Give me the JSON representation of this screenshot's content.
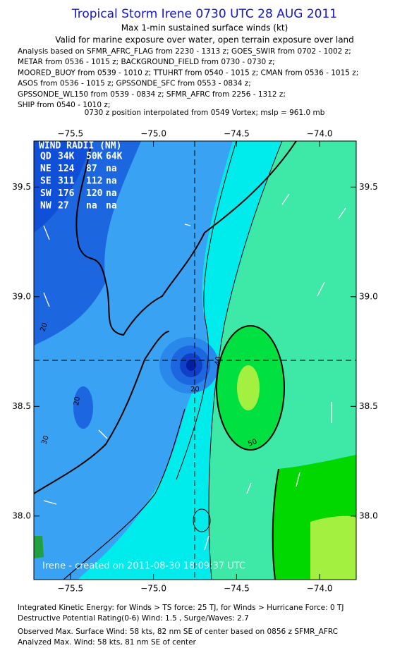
{
  "header": {
    "title": "Tropical Storm Irene 0730 UTC 28 AUG 2011",
    "subtitle": "Max 1-min sustained surface winds (kt)",
    "validity": "Valid for marine exposure over water, open terrain exposure over land",
    "analysis_lines": [
      "Analysis based on SFMR_AFRC_FLAG from 2230 - 1313 z; GOES_SWIR from 0702 - 1002 z;",
      "METAR from 0536 - 1015 z; BACKGROUND_FIELD from 0730 - 0730 z;",
      "MOORED_BUOY from 0539 - 1010 z; TTUHRT from 0540 - 1015 z; CMAN from 0536 - 1015 z;",
      "ASOS from 0536 - 1015 z; GPSSONDE_SFC from 0553 - 0834 z;",
      "GPSSONDE_WL150 from 0539 - 0834 z; SFMR_AFRC from 2256 - 1312 z;",
      "SHIP from 0540 - 1010 z;"
    ],
    "position_note": "0730 z position interpolated from 0549 Vortex; mslp = 961.0 mb"
  },
  "map": {
    "xlim": [
      -75.72,
      -73.78
    ],
    "ylim": [
      37.71,
      39.71
    ],
    "xticks": [
      {
        "value": -75.5,
        "label": "−75.5"
      },
      {
        "value": -75.0,
        "label": "−75.0"
      },
      {
        "value": -74.5,
        "label": "−74.5"
      },
      {
        "value": -74.0,
        "label": "−74.0"
      }
    ],
    "yticks": [
      {
        "value": 39.5,
        "label": "39.5"
      },
      {
        "value": 39.0,
        "label": "39.0"
      },
      {
        "value": 38.5,
        "label": "38.5"
      },
      {
        "value": 38.0,
        "label": "38.0"
      }
    ],
    "wind_radii": {
      "title": "WIND RADII (NM)",
      "rows": [
        [
          "QD",
          "34K",
          "50K",
          "64K"
        ],
        [
          "NE",
          "124",
          "87",
          "na"
        ],
        [
          "SE",
          "311",
          "112",
          "na"
        ],
        [
          "SW",
          "176",
          "120",
          "na"
        ],
        [
          "NW",
          "27",
          "na",
          "na"
        ]
      ]
    },
    "contour_labels": [
      "20",
      "20",
      "20",
      "30",
      "40",
      "50"
    ],
    "credit": "Irene - created on 2011-08-30 18:09:37 UTC"
  },
  "footer": {
    "lines": [
      "Integrated Kinetic Energy:  for Winds > TS force: 25 TJ,  for Winds > Hurricane Force: 0 TJ",
      "Destructive Potential Rating(0-6)   Wind: 1.5 , Surge/Waves: 2.7",
      "Observed Max. Surface Wind: 58 kts, 82 nm SE of center based on 0856 z SFMR_AFRC",
      "Analyzed Max. Wind: 58 kts, 81 nm SE of center"
    ]
  }
}
